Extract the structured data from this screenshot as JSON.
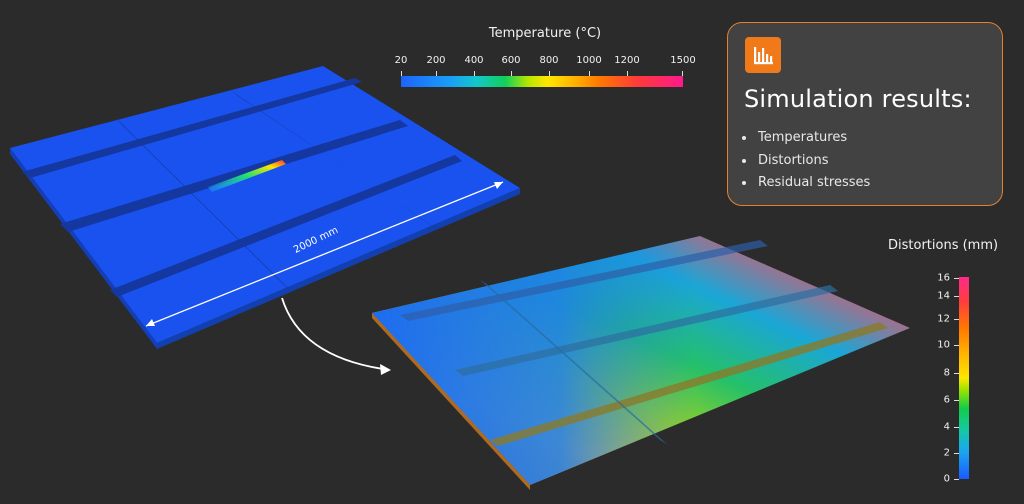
{
  "temperature_scale": {
    "title": "Temperature (°C)",
    "ticks": [
      "20",
      "200",
      "400",
      "600",
      "800",
      "1000",
      "1200",
      "1500"
    ]
  },
  "results_panel": {
    "icon": "bar-chart-icon",
    "accent_color": "#f07a1a",
    "title": "Simulation results:",
    "items": [
      "Temperatures",
      "Distortions",
      "Residual stresses"
    ]
  },
  "distortion_scale": {
    "title": "Distortions (mm)",
    "ticks": [
      "16",
      "14",
      "12",
      "10",
      "8",
      "6",
      "4",
      "2",
      "0"
    ]
  },
  "dimension_label": "2000 mm"
}
